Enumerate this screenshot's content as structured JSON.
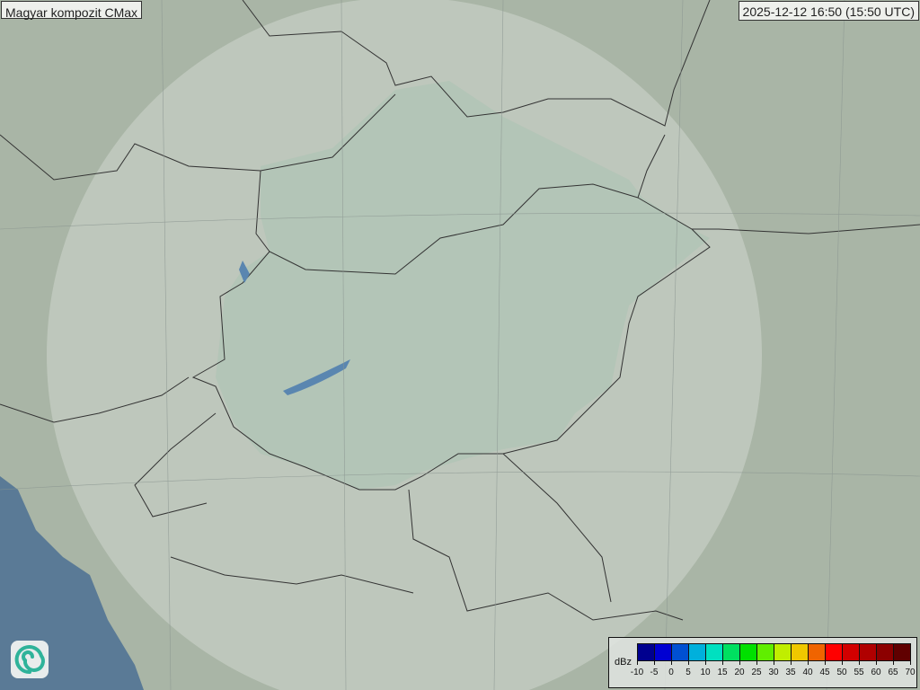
{
  "title": "Magyar kompozit  CMax",
  "timestamp": "2025-12-12 16:50 (15:50 UTC)",
  "logo_icon": "swirl-logo-icon",
  "legend": {
    "unit": "dBz",
    "labels": [
      "-10",
      "-5",
      "0",
      "5",
      "10",
      "15",
      "20",
      "25",
      "30",
      "35",
      "40",
      "45",
      "50",
      "55",
      "60",
      "65",
      "70"
    ],
    "colors": [
      "#00008f",
      "#0000d2",
      "#0050d2",
      "#00b0dc",
      "#00e0c0",
      "#00e060",
      "#00e000",
      "#60ee00",
      "#c0ee00",
      "#f0c800",
      "#f06400",
      "#ff0000",
      "#d20000",
      "#b00000",
      "#8c0000",
      "#600000"
    ]
  },
  "map_colors": {
    "land": "#a9b5a6",
    "radar_coverage": "#c3ccc0",
    "hungary": "#a9c2b2",
    "sea": "#5a7a96"
  }
}
